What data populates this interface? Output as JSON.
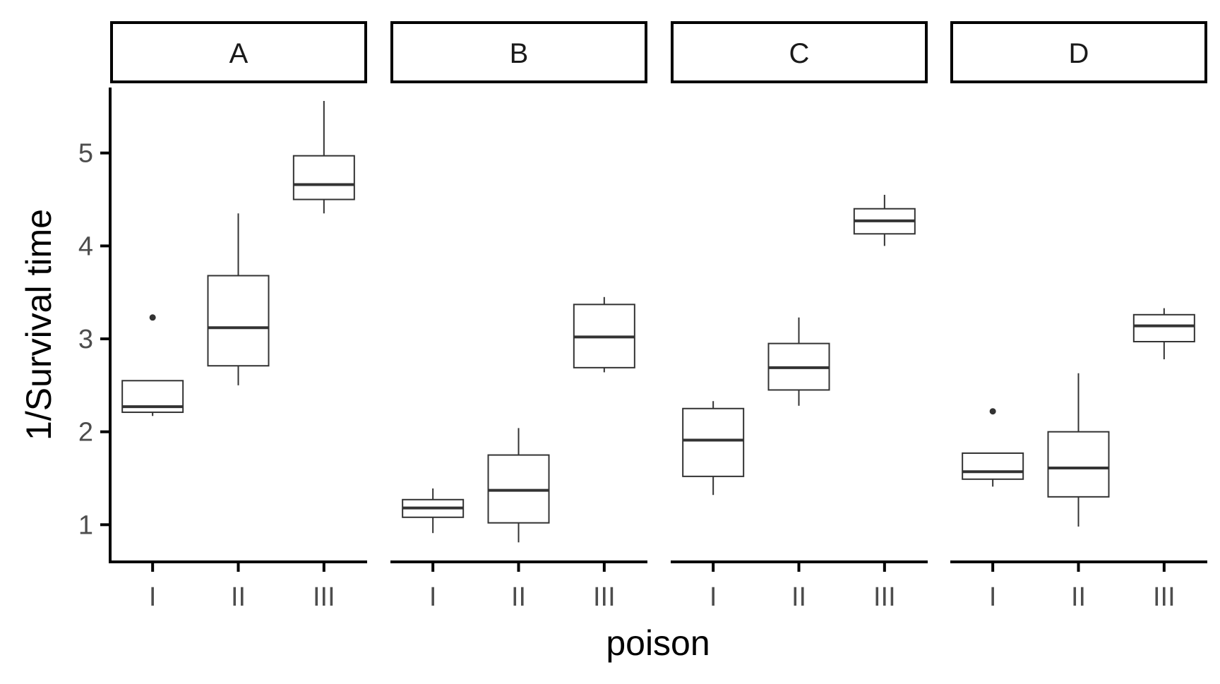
{
  "chart_data": {
    "type": "boxplot",
    "facet_variable_levels": [
      "A",
      "B",
      "C",
      "D"
    ],
    "xlabel": "poison",
    "ylabel": "1/Survival time",
    "x_categories": [
      "I",
      "II",
      "III"
    ],
    "y_ticks": [
      1,
      2,
      3,
      4,
      5
    ],
    "ylim": [
      0.6,
      5.75
    ],
    "grid": false,
    "legend": "none",
    "colors": {
      "box_stroke": "#333333",
      "median": "#333333",
      "axis": "#000000",
      "strip_border": "#000000"
    },
    "panels": [
      {
        "facet": "A",
        "boxes": [
          {
            "x": "I",
            "whisker_low": 2.17,
            "q1": 2.21,
            "median": 2.27,
            "q3": 2.55,
            "whisker_high": 2.55,
            "outliers": [
              3.23
            ]
          },
          {
            "x": "II",
            "whisker_low": 2.5,
            "q1": 2.71,
            "median": 3.12,
            "q3": 3.68,
            "whisker_high": 4.35,
            "outliers": []
          },
          {
            "x": "III",
            "whisker_low": 4.35,
            "q1": 4.5,
            "median": 4.66,
            "q3": 4.97,
            "whisker_high": 5.56,
            "outliers": []
          }
        ]
      },
      {
        "facet": "B",
        "boxes": [
          {
            "x": "I",
            "whisker_low": 0.91,
            "q1": 1.08,
            "median": 1.18,
            "q3": 1.27,
            "whisker_high": 1.39,
            "outliers": []
          },
          {
            "x": "II",
            "whisker_low": 0.81,
            "q1": 1.02,
            "median": 1.37,
            "q3": 1.75,
            "whisker_high": 2.04,
            "outliers": []
          },
          {
            "x": "III",
            "whisker_low": 2.64,
            "q1": 2.69,
            "median": 3.02,
            "q3": 3.37,
            "whisker_high": 3.45,
            "outliers": []
          }
        ]
      },
      {
        "facet": "C",
        "boxes": [
          {
            "x": "I",
            "whisker_low": 1.32,
            "q1": 1.52,
            "median": 1.91,
            "q3": 2.25,
            "whisker_high": 2.33,
            "outliers": []
          },
          {
            "x": "II",
            "whisker_low": 2.28,
            "q1": 2.45,
            "median": 2.69,
            "q3": 2.95,
            "whisker_high": 3.23,
            "outliers": []
          },
          {
            "x": "III",
            "whisker_low": 4.0,
            "q1": 4.13,
            "median": 4.27,
            "q3": 4.4,
            "whisker_high": 4.55,
            "outliers": []
          }
        ]
      },
      {
        "facet": "D",
        "boxes": [
          {
            "x": "I",
            "whisker_low": 1.41,
            "q1": 1.49,
            "median": 1.57,
            "q3": 1.77,
            "whisker_high": 1.77,
            "outliers": [
              2.22
            ]
          },
          {
            "x": "II",
            "whisker_low": 0.98,
            "q1": 1.3,
            "median": 1.61,
            "q3": 2.0,
            "whisker_high": 2.63,
            "outliers": []
          },
          {
            "x": "III",
            "whisker_low": 2.78,
            "q1": 2.97,
            "median": 3.14,
            "q3": 3.26,
            "whisker_high": 3.33,
            "outliers": []
          }
        ]
      }
    ]
  }
}
